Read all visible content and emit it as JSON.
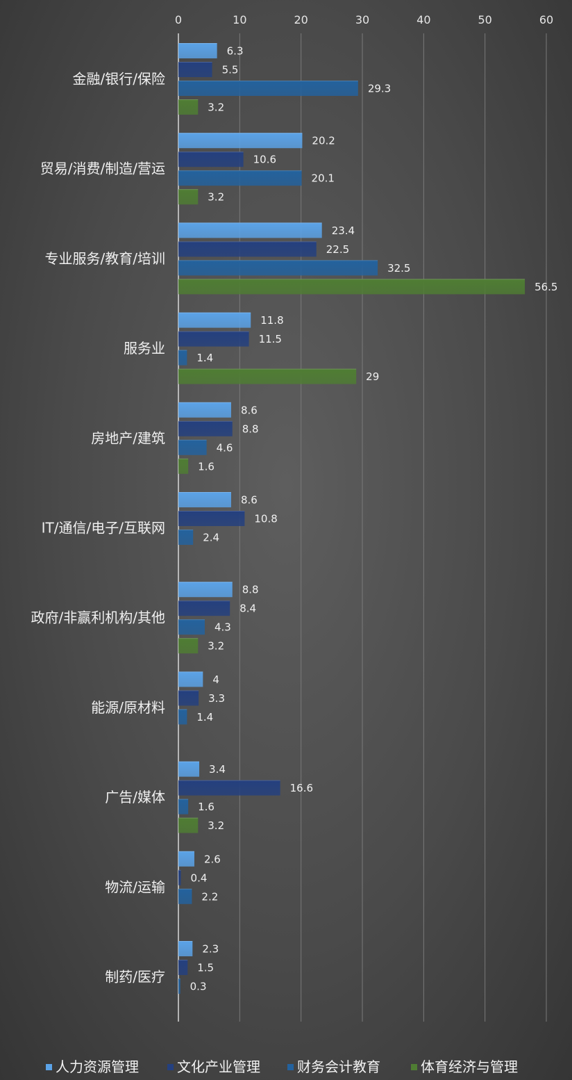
{
  "chart_data": {
    "type": "bar",
    "orientation": "horizontal",
    "categories": [
      "金融/银行/保险",
      "贸易/消费/制造/营运",
      "专业服务/教育/培训",
      "服务业",
      "房地产/建筑",
      "IT/通信/电子/互联网",
      "政府/非赢利机构/其他",
      "能源/原材料",
      "广告/媒体",
      "物流/运输",
      "制药/医疗"
    ],
    "series": [
      {
        "name": "人力资源管理",
        "color": "#5ba3e8",
        "values": [
          6.3,
          20.2,
          23.4,
          11.8,
          8.6,
          8.6,
          8.8,
          4,
          3.4,
          2.6,
          2.3
        ]
      },
      {
        "name": "文化产业管理",
        "color": "#24407f",
        "values": [
          5.5,
          10.6,
          22.5,
          11.5,
          8.8,
          10.8,
          8.4,
          3.3,
          16.6,
          0.4,
          1.5
        ]
      },
      {
        "name": "财务会计教育",
        "color": "#23629e",
        "values": [
          29.3,
          20.1,
          32.5,
          1.4,
          4.6,
          2.4,
          4.3,
          1.4,
          1.6,
          2.2,
          0.3
        ]
      },
      {
        "name": "体育经济与管理",
        "color": "#4f7d33",
        "values": [
          3.2,
          3.2,
          56.5,
          29,
          1.6,
          null,
          3.2,
          null,
          3.2,
          null,
          null
        ]
      }
    ],
    "xlim": [
      0,
      60
    ],
    "xticks": [
      0,
      10,
      20,
      30,
      40,
      50,
      60
    ],
    "axis_position": "top",
    "grid": true,
    "legend": "bottom",
    "data_labels": true
  }
}
